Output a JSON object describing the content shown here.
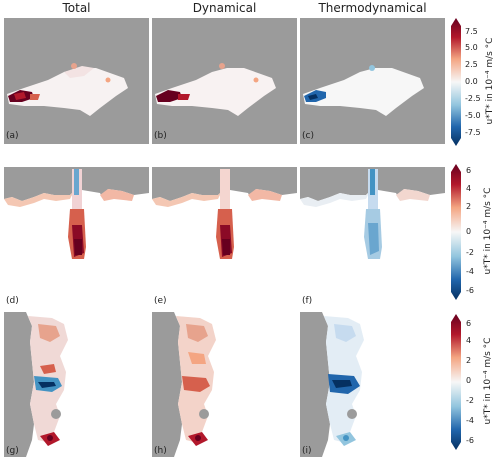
{
  "columns": [
    "Total",
    "Dynamical",
    "Thermodynamical"
  ],
  "panel_labels": [
    "(a)",
    "(b)",
    "(c)",
    "(d)",
    "(e)",
    "(f)",
    "(g)",
    "(h)",
    "(i)"
  ],
  "colorbars": [
    {
      "label": "u*T* in 10⁻⁴ m/s °C",
      "ticks": [
        "7.5",
        "5.0",
        "2.5",
        "0.0",
        "-2.5",
        "-5.0",
        "-7.5"
      ],
      "range": [
        -9,
        9
      ]
    },
    {
      "label": "u*T* in 10⁻⁴ m/s °C",
      "ticks": [
        "6",
        "4",
        "2",
        "0",
        "-2",
        "-4",
        "-6"
      ],
      "range": [
        -6.8,
        6.8
      ]
    },
    {
      "label": "u*T* in 10⁻⁴ m/s °C",
      "ticks": [
        "6",
        "4",
        "2",
        "0",
        "-2",
        "-4",
        "-6"
      ],
      "range": [
        -6.8,
        6.8
      ]
    }
  ],
  "colors": {
    "land": "#9b9b9b",
    "positive": "#67001f",
    "negative": "#053061",
    "zero": "#f7f7f7"
  }
}
